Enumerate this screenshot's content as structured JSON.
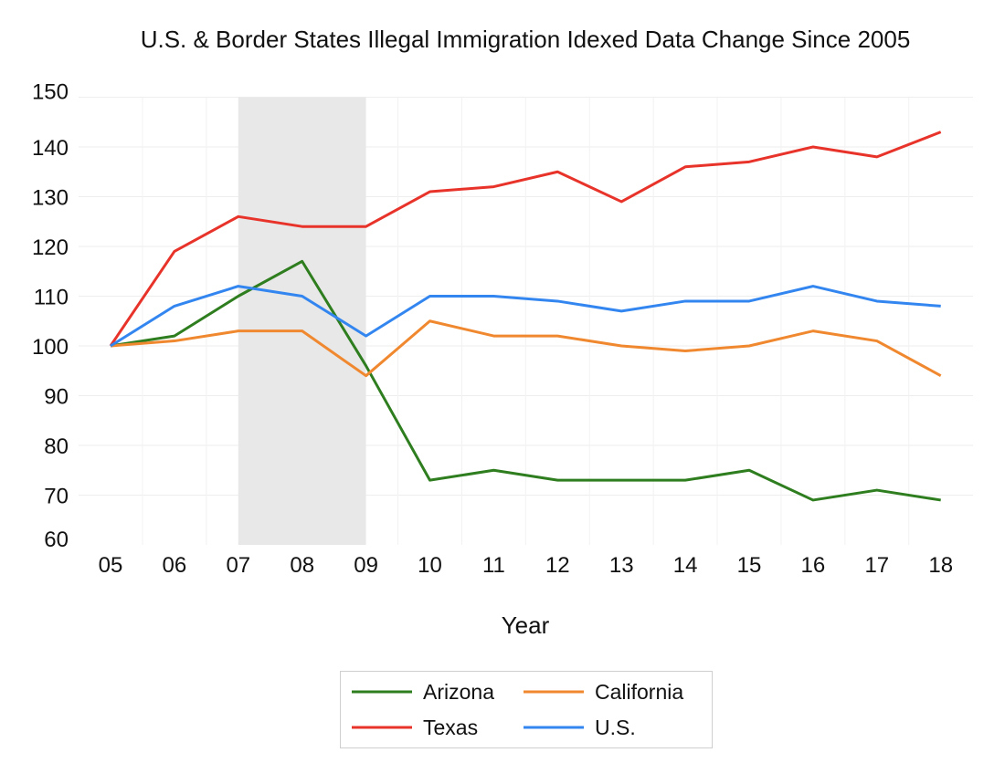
{
  "chart_data": {
    "type": "line",
    "title": "U.S. & Border States Illegal Immigration Idexed Data Change Since 2005",
    "xlabel": "Year",
    "ylabel": "",
    "categories": [
      "05",
      "06",
      "07",
      "08",
      "09",
      "10",
      "11",
      "12",
      "13",
      "14",
      "15",
      "16",
      "17",
      "18"
    ],
    "ylim": [
      60,
      150
    ],
    "yticks": [
      60,
      70,
      80,
      90,
      100,
      110,
      120,
      130,
      140,
      150
    ],
    "grid": true,
    "shaded_region": [
      "07",
      "09"
    ],
    "legend_position": "bottom",
    "series": [
      {
        "name": "Arizona",
        "color": "#2e7d1e",
        "values": [
          100,
          102,
          110,
          117,
          96,
          73,
          75,
          73,
          73,
          73,
          75,
          69,
          71,
          69
        ]
      },
      {
        "name": "California",
        "color": "#f0882f",
        "values": [
          100,
          101,
          103,
          103,
          94,
          105,
          102,
          102,
          100,
          99,
          100,
          103,
          101,
          94
        ]
      },
      {
        "name": "Texas",
        "color": "#e8332a",
        "values": [
          100,
          119,
          126,
          124,
          124,
          131,
          132,
          135,
          129,
          136,
          137,
          140,
          138,
          143
        ]
      },
      {
        "name": "U.S.",
        "color": "#3386f0",
        "values": [
          100,
          108,
          112,
          110,
          102,
          110,
          110,
          109,
          107,
          109,
          109,
          112,
          109,
          108
        ]
      }
    ]
  }
}
